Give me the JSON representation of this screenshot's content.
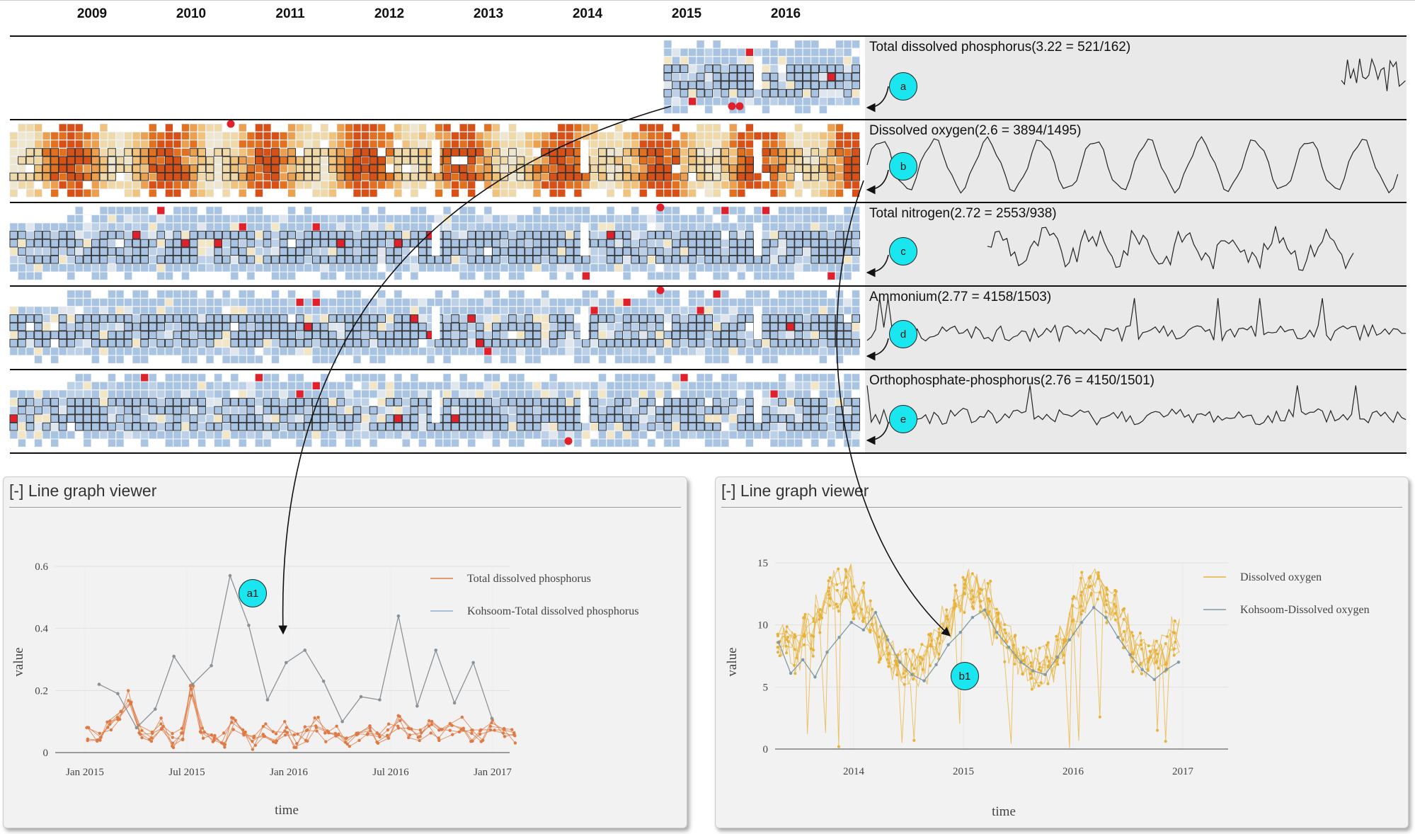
{
  "years": [
    "2009",
    "2010",
    "2011",
    "2012",
    "2013",
    "2014",
    "2015",
    "2016"
  ],
  "rows": [
    {
      "title": "Total dissolved phosphorus(3.22 = 521/162)",
      "callout": "a",
      "scheme": "blue",
      "start_year": 2015
    },
    {
      "title": "Dissolved oxygen(2.6 = 3894/1495)",
      "callout": "b",
      "scheme": "orange",
      "start_year": 2008
    },
    {
      "title": "Total nitrogen(2.72 = 2553/938)",
      "callout": "c",
      "scheme": "blue",
      "start_year": 2008
    },
    {
      "title": "Ammonium(2.77 = 4158/1503)",
      "callout": "d",
      "scheme": "blue",
      "start_year": 2008
    },
    {
      "title": "Orthophosphate-phosphorus(2.76 = 4150/1501)",
      "callout": "e",
      "scheme": "blue",
      "start_year": 2008
    }
  ],
  "colors": {
    "blue_cell": "#a9c4e2",
    "orange_hot": "#e2701f",
    "outlier": "#e0202a",
    "phosphorus_series": "#e07a45",
    "kohsoom_series": "#8a9298",
    "oxygen_series": "#e8b23a",
    "callout_fill": "#19e6ee",
    "panel_bg": "#e9e9e9"
  },
  "viewers": [
    {
      "title": "[-] Line graph viewer",
      "callout": "a1",
      "xlabel": "time",
      "ylabel": "value"
    },
    {
      "title": "[-] Line graph viewer",
      "callout": "b1",
      "xlabel": "time",
      "ylabel": "value"
    }
  ],
  "chart_data": [
    {
      "type": "line",
      "title": "",
      "xlabel": "time",
      "ylabel": "value",
      "x_ticks": [
        "Jan 2015",
        "Jul 2015",
        "Jan 2016",
        "Jul 2016",
        "Jan 2017"
      ],
      "y_ticks": [
        "0",
        "0.2",
        "0.4",
        "0.6"
      ],
      "ylim": [
        0,
        0.6
      ],
      "legend": "top-right",
      "series": [
        {
          "name": "Total dissolved phosphorus",
          "values": [
            0.06,
            0.05,
            0.08,
            0.12,
            0.18,
            0.07,
            0.05,
            0.09,
            0.04,
            0.06,
            0.2,
            0.07,
            0.05,
            0.04,
            0.09,
            0.06,
            0.03,
            0.07,
            0.05,
            0.08,
            0.04,
            0.06,
            0.09,
            0.05,
            0.07,
            0.04,
            0.06,
            0.08,
            0.05,
            0.07,
            0.1,
            0.06,
            0.05,
            0.08,
            0.06,
            0.07,
            0.09,
            0.05,
            0.06,
            0.08,
            0.07,
            0.05
          ]
        },
        {
          "name": "Kohsoom-Total dissolved phosphorus",
          "x": [
            "2015-02",
            "2015-03",
            "2015-04",
            "2015-05",
            "2015-07",
            "2015-08",
            "2015-09",
            "2015-10",
            "2015-11",
            "2015-12",
            "2016-01",
            "2016-02",
            "2016-03",
            "2016-04",
            "2016-05",
            "2016-06",
            "2016-07",
            "2016-08",
            "2016-09",
            "2016-10",
            "2016-11",
            "2016-12"
          ],
          "values": [
            0.22,
            0.19,
            0.08,
            0.14,
            0.31,
            0.22,
            0.28,
            0.57,
            0.41,
            0.17,
            0.29,
            0.33,
            0.23,
            0.1,
            0.18,
            0.17,
            0.44,
            0.15,
            0.33,
            0.16,
            0.29,
            0.11
          ]
        }
      ]
    },
    {
      "type": "line",
      "title": "",
      "xlabel": "time",
      "ylabel": "value",
      "x_ticks": [
        "2014",
        "2015",
        "2016",
        "2017"
      ],
      "y_ticks": [
        "0",
        "5",
        "10",
        "15"
      ],
      "ylim": [
        0,
        15
      ],
      "legend": "top-right",
      "series": [
        {
          "name": "Dissolved oxygen",
          "values": [
            8.5,
            7.8,
            9.2,
            11.0,
            12.8,
            13.2,
            12.0,
            10.5,
            8.2,
            7.0,
            6.4,
            6.8,
            8.0,
            10.2,
            12.6,
            13.0,
            12.2,
            10.0,
            8.4,
            7.2,
            6.5,
            7.0,
            8.4,
            10.6,
            12.5,
            12.9,
            11.8,
            9.6,
            7.8,
            7.1,
            7.5,
            9.0
          ]
        },
        {
          "name": "Kohsoom-Dissolved oxygen",
          "values": [
            8.6,
            6.1,
            7.2,
            5.8,
            7.8,
            9.0,
            10.2,
            9.6,
            11.0,
            8.8,
            7.0,
            6.0,
            5.5,
            6.8,
            8.4,
            9.4,
            10.6,
            11.2,
            9.4,
            8.2,
            7.0,
            6.3,
            6.0,
            7.4,
            8.8,
            10.2,
            11.4,
            10.6,
            9.0,
            7.6,
            6.4,
            5.6,
            6.4,
            7.0
          ]
        }
      ]
    }
  ]
}
